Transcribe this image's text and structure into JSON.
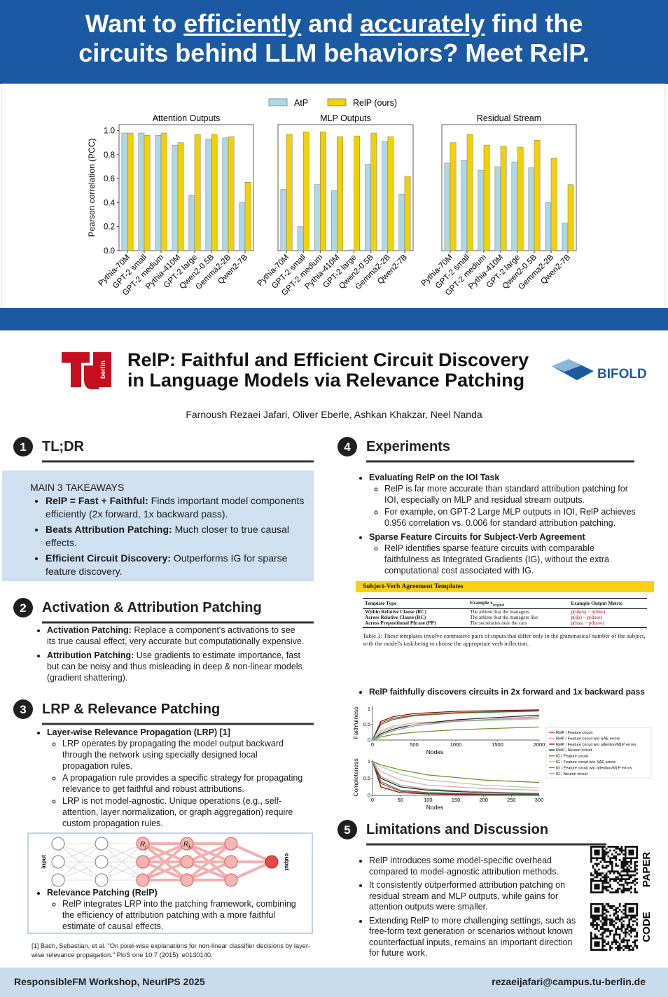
{
  "header": {
    "headline": [
      "Want to ",
      "efficiently",
      " and ",
      "accurately",
      " find the",
      "circuits behind LLM behaviors? Meet RelP."
    ]
  },
  "chart_data": [
    {
      "type": "bar",
      "title": "Attention Outputs",
      "y_label": "Pearson correlation (PCC)",
      "categories": [
        "Pythia-70M",
        "GPT-2 small",
        "GPT-2 medium",
        "Pythia-410M",
        "GPT-2 large",
        "Qwen2-0.5B",
        "Gemma2-2B",
        "Qwen2-7B"
      ],
      "series": [
        {
          "name": "AtP",
          "color": "#add8e6",
          "values": [
            0.98,
            0.98,
            0.96,
            0.88,
            0.46,
            0.93,
            0.94,
            0.4
          ]
        },
        {
          "name": "RelP (ours)",
          "color": "#f5d000",
          "values": [
            0.98,
            0.96,
            0.98,
            0.9,
            0.97,
            0.97,
            0.95,
            0.57
          ]
        }
      ],
      "ylim": [
        0,
        1.05
      ],
      "yticks": [
        {
          "value": 0,
          "label": "0.0"
        },
        {
          "value": 0.2,
          "label": "0.2"
        },
        {
          "value": 0.4,
          "label": "0.4"
        },
        {
          "value": 0.6,
          "label": "0.6"
        },
        {
          "value": 0.8,
          "label": "0.8"
        },
        {
          "value": 1,
          "label": "1.0"
        }
      ]
    },
    {
      "type": "bar",
      "title": "MLP Outputs",
      "categories": [
        "Pythia-70M",
        "GPT-2 small",
        "GPT-2 medium",
        "Pythia-410M",
        "GPT-2 large",
        "Qwen2-0.5B",
        "Gemma2-2B",
        "Qwen2-7B"
      ],
      "series": [
        {
          "name": "AtP",
          "color": "#add8e6",
          "values": [
            0.51,
            0.2,
            0.55,
            0.5,
            0.006,
            0.72,
            0.91,
            0.47
          ]
        },
        {
          "name": "RelP (ours)",
          "color": "#f5d000",
          "values": [
            0.97,
            0.99,
            0.99,
            0.95,
            0.956,
            0.98,
            0.95,
            0.62
          ]
        }
      ],
      "ylim": [
        0,
        1.05
      ]
    },
    {
      "type": "bar",
      "title": "Residual Stream",
      "categories": [
        "Pythia-70M",
        "GPT-2 small",
        "GPT-2 medium",
        "Pythia-410M",
        "GPT-2 large",
        "Qwen2-0.5B",
        "Gemma2-2B",
        "Qwen2-7B"
      ],
      "series": [
        {
          "name": "AtP",
          "color": "#add8e6",
          "values": [
            0.73,
            0.75,
            0.67,
            0.7,
            0.74,
            0.69,
            0.4,
            0.23
          ]
        },
        {
          "name": "RelP (ours)",
          "color": "#f5d000",
          "values": [
            0.9,
            0.97,
            0.88,
            0.87,
            0.86,
            0.92,
            0.77,
            0.55
          ]
        }
      ],
      "ylim": [
        0,
        1.05
      ]
    },
    {
      "type": "line",
      "y_label": "Faithfulness",
      "x_label": "Nodes",
      "x": [
        0,
        100,
        250,
        500,
        1000,
        2000
      ],
      "xlim": [
        0,
        2000
      ],
      "xticks": [
        0,
        500,
        1000,
        1500,
        2000
      ],
      "ylim": [
        0,
        1.1
      ],
      "yticks": [
        0,
        0.5,
        1
      ],
      "series": [
        {
          "name": "RelP / Feature circuit",
          "color": "#c0392b",
          "values": [
            0,
            0.55,
            0.7,
            0.8,
            0.88,
            0.95
          ]
        },
        {
          "name": "RelP / Feature circuit w/o SAE errors",
          "color": "#e8a0a0",
          "values": [
            0,
            0.3,
            0.45,
            0.55,
            0.62,
            0.7
          ]
        },
        {
          "name": "RelP / Feature circuit w/o attention/MLP errors",
          "color": "#7a1010",
          "values": [
            0,
            0.6,
            0.75,
            0.85,
            0.92,
            0.97
          ]
        },
        {
          "name": "RelP / Neuron circuit",
          "color": "#222222",
          "values": [
            0,
            0.2,
            0.35,
            0.5,
            0.65,
            0.8
          ]
        },
        {
          "name": "IG / Feature circuit",
          "color": "#3a7d3a",
          "values": [
            0,
            0.5,
            0.66,
            0.78,
            0.86,
            0.93
          ]
        },
        {
          "name": "IG / Feature circuit w/o SAE errors",
          "color": "#a8c8a0",
          "values": [
            0,
            0.25,
            0.4,
            0.5,
            0.6,
            0.68
          ]
        },
        {
          "name": "IG / Feature circuit w/o attention/MLP errors",
          "color": "#6b8e23",
          "values": [
            0,
            0.1,
            0.18,
            0.25,
            0.33,
            0.42
          ]
        },
        {
          "name": "IG / Neuron circuit",
          "color": "#9a9a9a",
          "values": [
            0,
            0.15,
            0.3,
            0.45,
            0.6,
            0.75
          ]
        }
      ]
    },
    {
      "type": "line",
      "y_label": "Completeness",
      "x_label": "Nodes",
      "x": [
        0,
        15,
        50,
        100,
        200,
        300
      ],
      "xlim": [
        0,
        300
      ],
      "xticks": [
        0,
        50,
        100,
        150,
        200,
        250,
        300
      ],
      "ylim": [
        0,
        1.05
      ],
      "yticks": [
        0,
        0.5,
        1
      ],
      "series": [
        {
          "name": "RelP / Feature circuit",
          "color": "#c0392b",
          "values": [
            1,
            0.35,
            0.12,
            0.06,
            0.03,
            0.02
          ]
        },
        {
          "name": "RelP / Feature circuit w/o SAE errors",
          "color": "#e8a0a0",
          "values": [
            1,
            0.7,
            0.45,
            0.3,
            0.2,
            0.15
          ]
        },
        {
          "name": "RelP / Feature circuit w/o attention/MLP errors",
          "color": "#7a1010",
          "values": [
            1,
            0.25,
            0.08,
            0.04,
            0.02,
            0.01
          ]
        },
        {
          "name": "RelP / Neuron circuit",
          "color": "#222222",
          "values": [
            1,
            0.5,
            0.25,
            0.15,
            0.08,
            0.05
          ]
        },
        {
          "name": "IG / Feature circuit",
          "color": "#3a7d3a",
          "values": [
            1,
            0.4,
            0.15,
            0.08,
            0.04,
            0.03
          ]
        },
        {
          "name": "IG / Feature circuit w/o SAE errors",
          "color": "#a8c8a0",
          "values": [
            1,
            0.85,
            0.62,
            0.45,
            0.3,
            0.22
          ]
        },
        {
          "name": "IG / Feature circuit w/o attention/MLP errors",
          "color": "#6b8e23",
          "values": [
            1,
            0.9,
            0.75,
            0.6,
            0.45,
            0.38
          ]
        },
        {
          "name": "IG / Neuron circuit",
          "color": "#9a9a9a",
          "values": [
            1,
            0.55,
            0.3,
            0.18,
            0.1,
            0.06
          ]
        }
      ]
    }
  ],
  "title": {
    "lines": [
      "RelP: Faithful and Efficient Circuit Discovery",
      "in Language Models via Relevance Patching"
    ],
    "authors": "Farnoush Rezaei Jafari, Oliver Eberle, Ashkan Khakzar, Neel Nanda",
    "logo_left": "berlin",
    "logo_right": "BIFOLD"
  },
  "sections": [
    {
      "number": "1",
      "title": "TL;DR",
      "box_title": "MAIN 3 TAKEAWAYS",
      "items": [
        {
          "lead": "RelP = Fast + Faithful:",
          "text": "Finds important model components efficiently (2x forward, 1x backward pass)."
        },
        {
          "lead": "Beats Attribution Patching:",
          "text": "Much closer to true causal effects."
        },
        {
          "lead": "Efficient Circuit Discovery:",
          "text": "Outperforms IG for sparse feature discovery."
        }
      ]
    },
    {
      "number": "2",
      "title": "Activation & Attribution Patching",
      "items": [
        {
          "lead": "Activation Patching:",
          "text": "Replace a component's activations to see its true causal effect, very accurate but computationally expensive."
        },
        {
          "lead": "Attribution Patching:",
          "text": "Use gradients to estimate importance, fast but can be noisy and thus misleading in deep & non-linear models (gradient shattering)."
        }
      ]
    },
    {
      "number": "3",
      "title": "LRP & Relevance Patching",
      "items": [
        {
          "lead": "Layer-wise Relevance Propagation (LRP) [1]",
          "sub": [
            "LRP operates by propagating the model output backward through the network using specially designed local propagation rules.",
            "A propagation rule provides a specific strategy for propagating relevance to get faithful and robust attributions.",
            "LRP is not model-agnostic. Unique operations (e.g., self-attention, layer normalization, or graph aggregation) require custom propagation rules."
          ]
        },
        {
          "lead": "Relevance Patching (RelP)",
          "sub": [
            "RelP integrates LRP into the patching framework, combining the efficiency of attribution patching with a more faithful estimate of causal effects."
          ]
        }
      ]
    },
    {
      "number": "4",
      "title": "Experiments",
      "items": [
        {
          "lead": "Evaluating RelP on the IOI Task",
          "sub": [
            "RelP is far more accurate than standard attribution patching for IOI, especially on MLP and residual stream outputs.",
            "For example, on GPT-2 Large MLP outputs in IOI, RelP achieves 0.956 correlation vs. 0.006 for standard attribution patching."
          ]
        },
        {
          "lead": "Sparse Feature Circuits for Subject-Verb Agreement",
          "sub": [
            "RelP identifies sparse feature circuits with comparable faithfulness as Integrated Gradients (IG), without the extra computational cost associated with IG."
          ]
        },
        {
          "lead": "RelP faithfully discovers circuits in 2x forward and 1x backward pass"
        }
      ]
    },
    {
      "number": "5",
      "title": "Limitations and Discussion",
      "items": [
        {
          "text": "RelP introduces some model-specific overhead compared to model-agnostic attribution methods."
        },
        {
          "text": "It consistently outperformed attribution patching on residual stream and MLP outputs, while gains for attention outputs were smaller."
        },
        {
          "text": "Extending RelP to more challenging settings, such as free-form text generation or scenarios without known counterfactual inputs, remains an important direction for future work."
        }
      ]
    }
  ],
  "diagram": {
    "input": "input",
    "output": "output",
    "node_a": "R",
    "node_a_sub": "j",
    "node_b": "R",
    "node_b_sub": "k"
  },
  "table": {
    "title": "Subject-Verb Agreement Templates",
    "header": [
      "Template Type",
      "Example x",
      "Example Output Metric"
    ],
    "header_sub": "original",
    "rows": [
      [
        "Within Relative Clause (RC)",
        "The athlete that the managers",
        "p(likes) − p(like)"
      ],
      [
        "Across Relative Clause (RC)",
        "The athlete that the managers like",
        "p(do) − p(does)"
      ],
      [
        "Across Prepositional Phrase (PP)",
        "The secretaries near the cars",
        "p(has) − p(have)"
      ]
    ],
    "caption": "Table 3: These templates involve contrastive pairs of inputs that differ only in the grammatical number of the subject, with the model's task being to choose the appropriate verb inflection."
  },
  "footnote": "[1] Bach, Sebastian, et al. \"On pixel-wise explanations for non-linear classifier decisions by layer-wise relevance propagation.\" PloS one 10.7 (2015): e0130140.",
  "qr": {
    "paper": "PAPER",
    "code": "CODE"
  },
  "footer": {
    "left": "ResponsibleFM  Workshop, NeurIPS 2025",
    "right": "rezaeijafari@campus.tu-berlin.de"
  }
}
